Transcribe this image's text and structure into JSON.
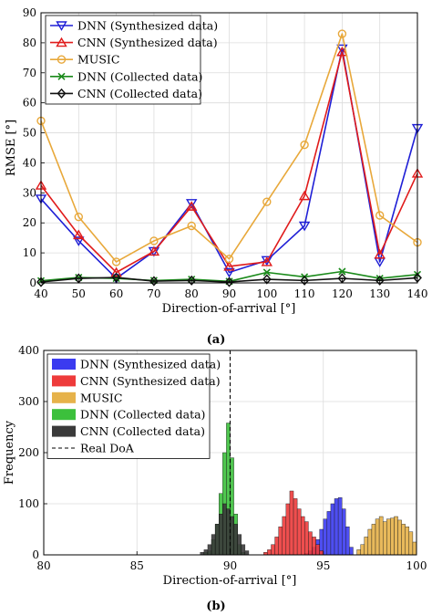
{
  "chart_data": [
    {
      "type": "line",
      "panel_label": "(a)",
      "xlabel": "Direction-of-arrival [°]",
      "ylabel": "RMSE [°]",
      "xlim": [
        40,
        140
      ],
      "ylim": [
        0,
        90
      ],
      "x": [
        40,
        50,
        60,
        70,
        80,
        90,
        100,
        110,
        120,
        130,
        140
      ],
      "xticks": [
        "40",
        "50",
        "60",
        "70",
        "80",
        "90",
        "100",
        "110",
        "120",
        "130",
        "140"
      ],
      "yticks": [
        "0",
        "10",
        "20",
        "30",
        "40",
        "50",
        "60",
        "70",
        "80",
        "90"
      ],
      "grid": true,
      "legend_position": "top-left",
      "series": [
        {
          "name": "DNN (Synthesized data)",
          "color": "#1f1fd6",
          "marker": "triangle-down",
          "values": [
            28,
            14,
            1.5,
            10.5,
            26.5,
            3.5,
            7.5,
            19,
            78,
            7,
            51.5
          ]
        },
        {
          "name": "CNN (Synthesized data)",
          "color": "#e01b1b",
          "marker": "triangle-up",
          "values": [
            32.5,
            16,
            3.5,
            10.5,
            25.5,
            5.5,
            7,
            29,
            77,
            9.5,
            36.5
          ]
        },
        {
          "name": "MUSIC",
          "color": "#e8a83a",
          "marker": "circle",
          "values": [
            54,
            22,
            7,
            14,
            19,
            8,
            27,
            46,
            83,
            22.5,
            13.5
          ]
        },
        {
          "name": "DNN (Collected data)",
          "color": "#1a8a1a",
          "marker": "x",
          "values": [
            0.7,
            1.8,
            1.5,
            0.8,
            1.2,
            0.5,
            3.5,
            2,
            3.8,
            1.5,
            2.8
          ]
        },
        {
          "name": "CNN (Collected data)",
          "color": "#111111",
          "marker": "diamond",
          "values": [
            0.3,
            1.5,
            1.8,
            0.6,
            0.8,
            0.3,
            1.2,
            0.8,
            1.5,
            0.8,
            1.7
          ]
        }
      ]
    },
    {
      "type": "bar",
      "subtype": "histogram",
      "panel_label": "(b)",
      "xlabel": "Direction-of-arrival [°]",
      "ylabel": "Frequency",
      "xlim": [
        80,
        100
      ],
      "ylim": [
        0,
        400
      ],
      "xticks": [
        "80",
        "85",
        "90",
        "95",
        "100"
      ],
      "yticks": [
        "0",
        "100",
        "200",
        "300",
        "400"
      ],
      "bin_width": 0.2,
      "grid": true,
      "legend_position": "top-left",
      "reference_line": {
        "name": "Real DoA",
        "x": 90
      },
      "series": [
        {
          "name": "DNN (Synthesized data)",
          "color": "#3b3bf0",
          "bins_start": [
            94.0,
            94.2,
            94.4,
            94.6,
            94.8,
            95.0,
            95.2,
            95.4,
            95.6,
            95.8,
            96.0,
            96.2,
            96.4
          ],
          "values": [
            3,
            8,
            15,
            30,
            50,
            70,
            85,
            100,
            110,
            112,
            90,
            55,
            15
          ]
        },
        {
          "name": "CNN (Synthesized data)",
          "color": "#ee3b3b",
          "bins_start": [
            91.8,
            92.0,
            92.2,
            92.4,
            92.6,
            92.8,
            93.0,
            93.2,
            93.4,
            93.6,
            93.8,
            94.0,
            94.2,
            94.4,
            94.6,
            94.8
          ],
          "values": [
            5,
            10,
            20,
            35,
            55,
            75,
            100,
            125,
            110,
            90,
            75,
            65,
            45,
            35,
            20,
            8
          ]
        },
        {
          "name": "MUSIC",
          "color": "#e6b24a",
          "bins_start": [
            96.8,
            97.0,
            97.2,
            97.4,
            97.6,
            97.8,
            98.0,
            98.2,
            98.4,
            98.6,
            98.8,
            99.0,
            99.2,
            99.4,
            99.6,
            99.8
          ],
          "values": [
            10,
            20,
            35,
            50,
            60,
            70,
            75,
            65,
            70,
            72,
            75,
            68,
            60,
            55,
            45,
            25
          ]
        },
        {
          "name": "DNN (Collected data)",
          "color": "#3cc03c",
          "bins_start": [
            88.6,
            88.8,
            89.0,
            89.2,
            89.4,
            89.6,
            89.8,
            90.0,
            90.2,
            90.4,
            90.6
          ],
          "values": [
            5,
            8,
            30,
            60,
            120,
            200,
            258,
            190,
            80,
            20,
            5
          ]
        },
        {
          "name": "CNN (Collected data)",
          "color": "#3a3a3a",
          "bins_start": [
            88.4,
            88.6,
            88.8,
            89.0,
            89.2,
            89.4,
            89.6,
            89.8,
            90.0,
            90.2,
            90.4,
            90.6,
            90.8
          ],
          "values": [
            5,
            10,
            20,
            40,
            60,
            80,
            100,
            90,
            75,
            60,
            40,
            20,
            8
          ]
        }
      ]
    }
  ]
}
